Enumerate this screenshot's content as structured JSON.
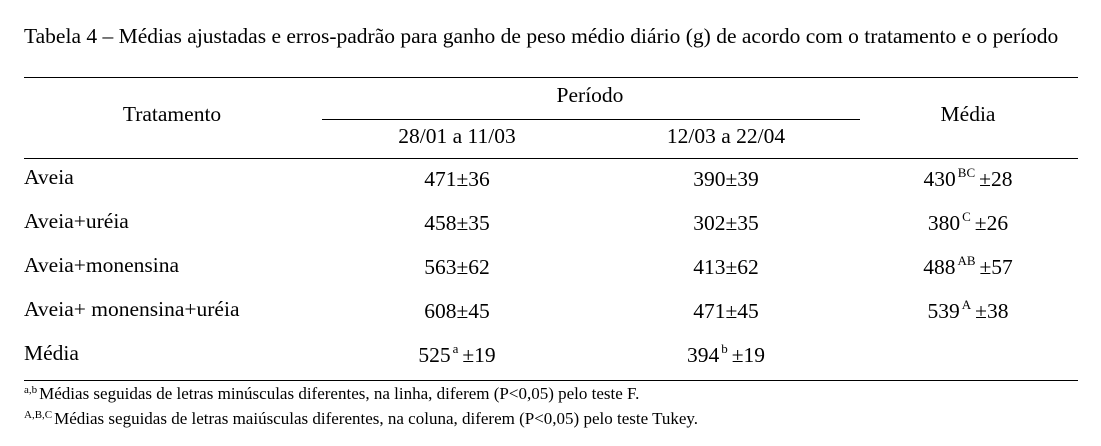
{
  "caption": "Tabela 4 – Médias ajustadas e erros-padrão para ganho de peso médio diário (g) de acordo com o tratamento e o período",
  "headers": {
    "treatment": "Tratamento",
    "period": "Período",
    "period1": "28/01 a 11/03",
    "period2": "12/03 a 22/04",
    "mean": "Média"
  },
  "rows": [
    {
      "label": "Aveia",
      "p1": "471±36",
      "p2": "390±39",
      "mean_val": "430",
      "mean_sup": "BC",
      "mean_se": "±28"
    },
    {
      "label": "Aveia+uréia",
      "p1": "458±35",
      "p2": "302±35",
      "mean_val": "380",
      "mean_sup": "C",
      "mean_se": "±26"
    },
    {
      "label": "Aveia+monensina",
      "p1": "563±62",
      "p2": "413±62",
      "mean_val": "488",
      "mean_sup": "AB",
      "mean_se": "±57"
    },
    {
      "label": "Aveia+ monensina+uréia",
      "p1": "608±45",
      "p2": "471±45",
      "mean_val": "539",
      "mean_sup": "A",
      "mean_se": "±38"
    }
  ],
  "mean_row": {
    "label": "Média",
    "p1_val": "525",
    "p1_sup": "a",
    "p1_se": "±19",
    "p2_val": "394",
    "p2_sup": "b",
    "p2_se": "±19"
  },
  "footnotes": [
    {
      "sup": "a,b",
      "text": "Médias seguidas de letras minúsculas diferentes, na linha, diferem (P<0,05) pelo teste F."
    },
    {
      "sup": "A,B,C",
      "text": "Médias seguidas de letras maiúsculas diferentes, na coluna, diferem (P<0,05) pelo teste Tukey."
    }
  ]
}
